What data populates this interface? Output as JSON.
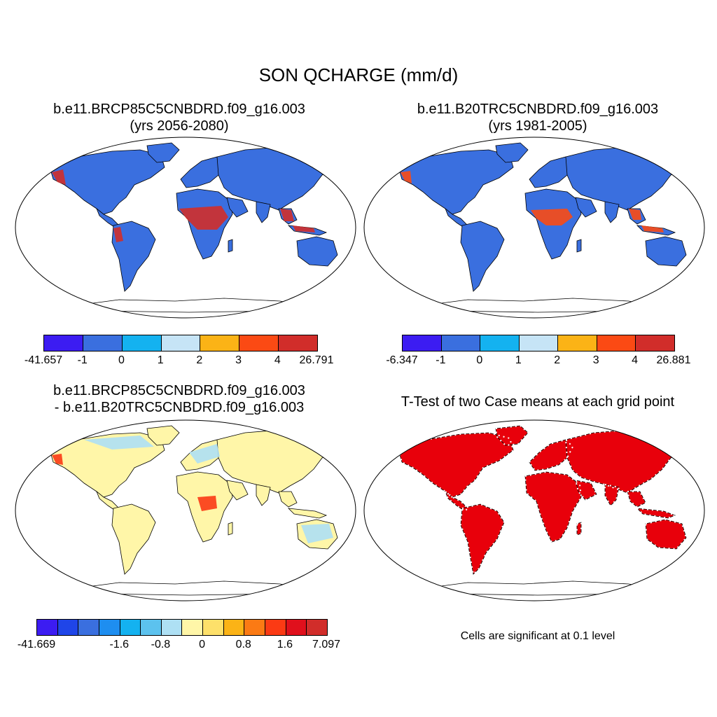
{
  "title": "SON QCHARGE (mm/d)",
  "panels": [
    {
      "id": "future",
      "title_line1": "b.e11.BRCP85C5CNBDRD.f09_g16.003",
      "title_line2": "(yrs 2056-2080)",
      "colorbar": {
        "colors": [
          "#3c1cf2",
          "#3a6fdf",
          "#14b2f0",
          "#c6e4f6",
          "#fbb316",
          "#fb4a14",
          "#d12d2a"
        ],
        "labels": [
          "-41.657",
          "-1",
          "0",
          "1",
          "2",
          "3",
          "4",
          "26.791"
        ]
      }
    },
    {
      "id": "historical",
      "title_line1": "b.e11.B20TRC5CNBDRD.f09_g16.003",
      "title_line2": "(yrs 1981-2005)",
      "colorbar": {
        "colors": [
          "#3c1cf2",
          "#3a6fdf",
          "#14b2f0",
          "#c6e4f6",
          "#fbb316",
          "#fb4a14",
          "#d12d2a"
        ],
        "labels": [
          "-6.347",
          "-1",
          "0",
          "1",
          "2",
          "3",
          "4",
          "26.881"
        ]
      }
    },
    {
      "id": "difference",
      "title_line1": "b.e11.BRCP85C5CNBDRD.f09_g16.003",
      "title_line2": "- b.e11.B20TRC5CNBDRD.f09_g16.003",
      "colorbar": {
        "colors": [
          "#3c1cf2",
          "#1f45e8",
          "#3a6fdf",
          "#1e8ef0",
          "#14b2f0",
          "#5cc2ee",
          "#aee0f4",
          "#fff6a8",
          "#fde06a",
          "#fbb316",
          "#fb7a14",
          "#fb3a14",
          "#e0101c",
          "#d12d2a"
        ],
        "labels": [
          "-41.669",
          "-1.6",
          "-0.8",
          "0",
          "0.8",
          "1.6",
          "7.097"
        ]
      }
    },
    {
      "id": "ttest",
      "title_line1": "T-Test of two Case means at each grid point",
      "note": "Cells are significant at 0.1 level"
    }
  ],
  "map_colors": {
    "ocean": "#ffffff",
    "coast": "#000000",
    "future_land": "#3a6fdf",
    "future_wet": "#d12d2a",
    "historical_land": "#3a6fdf",
    "historical_wet": "#fb4a14",
    "diff_land": "#fff6a8",
    "diff_light": "#aee0f4",
    "diff_hot": "#fb3a14",
    "ttest_sig": "#e8000b",
    "ttest_ns": "#ffffff"
  }
}
